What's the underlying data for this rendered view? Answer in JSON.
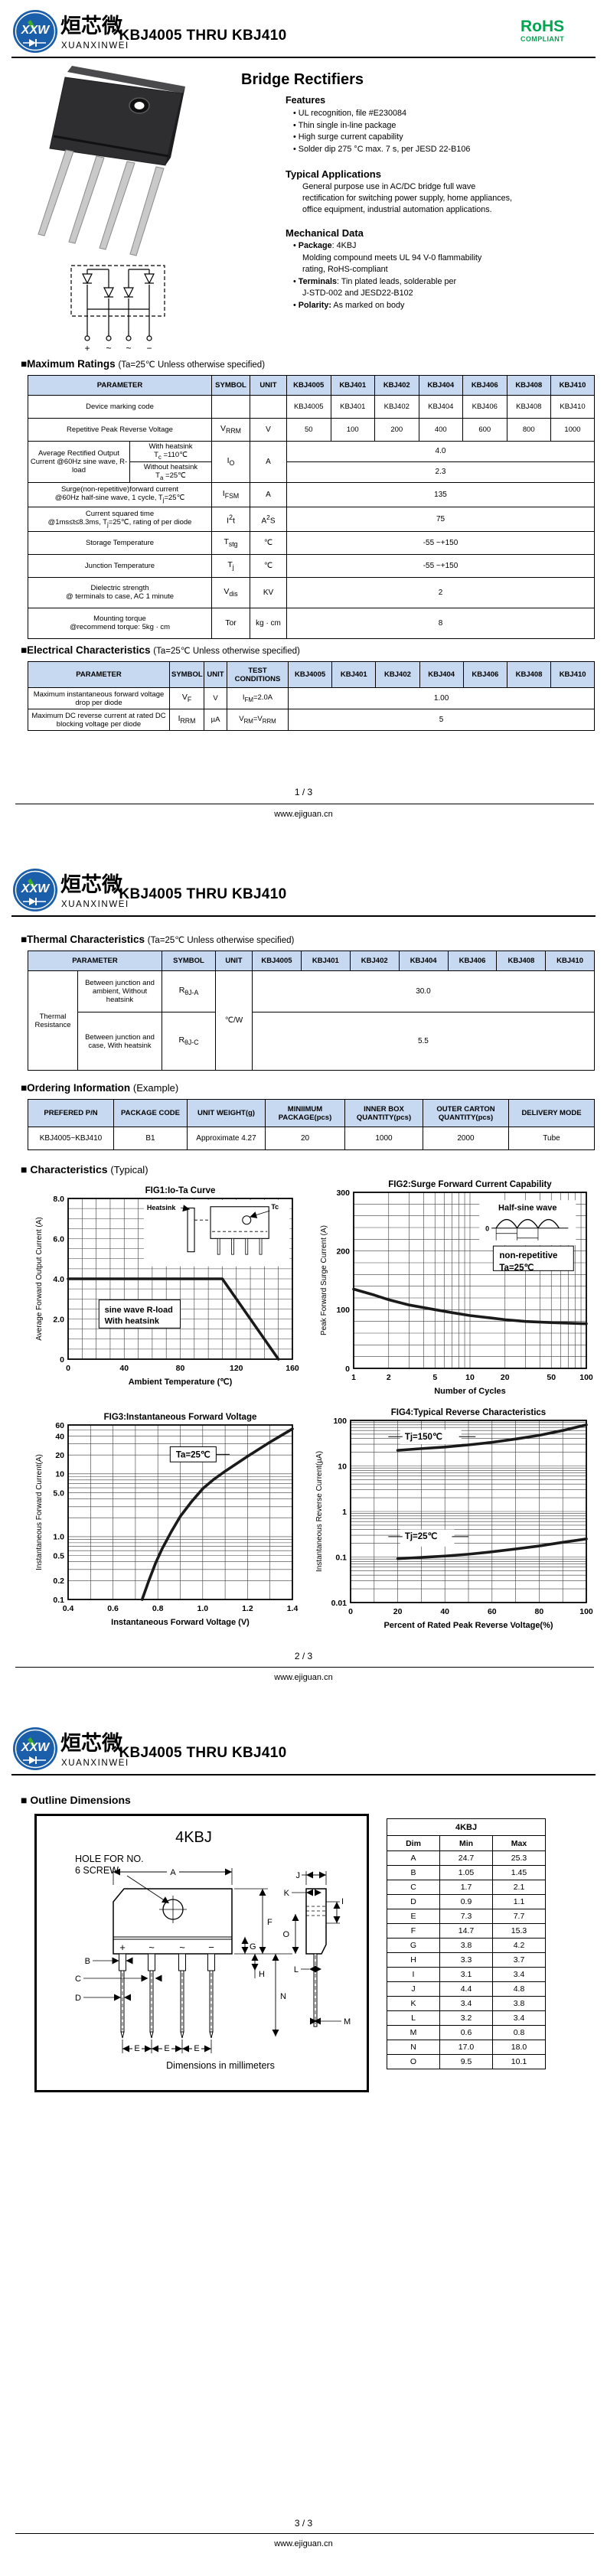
{
  "header": {
    "title": "KBJ4005 THRU KBJ410",
    "rohs": "RoHS",
    "rohs_sub": "COMPLIANT",
    "logo_abbr": "XXW",
    "logo_cn": "烜芯微",
    "logo_en": "XUANXINWEI"
  },
  "footer": {
    "url": "www.ejiguan.cn",
    "pages": [
      "1 / 3",
      "2 / 3",
      "3 / 3"
    ]
  },
  "devices": [
    "KBJ4005",
    "KBJ401",
    "KBJ402",
    "KBJ404",
    "KBJ406",
    "KBJ408",
    "KBJ410"
  ],
  "page1": {
    "product_title": "Bridge Rectifiers",
    "features_title": "Features",
    "features": [
      "UL recognition, file #E230084",
      "Thin single in-line package",
      "High surge current capability",
      "Solder dip 275 °C max. 7 s, per JESD 22-B106"
    ],
    "apps_title": "Typical  Applications",
    "apps_text": "General purpose use in AC/DC bridge full wave rectification for switching power supply, home appliances, office equipment, industrial automation applications.",
    "mech_title": "Mechanical Data",
    "mech": [
      {
        "b": "Package",
        "t": ": 4KBJ",
        "cont": [
          "Molding compound meets UL 94 V-0 flammability",
          "rating, RoHS-compliant"
        ]
      },
      {
        "b": "Terminals",
        "t": ": Tin plated leads, solderable per",
        "cont": [
          "J-STD-002 and JESD22-B102"
        ]
      },
      {
        "b": "Polarity:",
        "t": " As marked on body",
        "cont": []
      }
    ],
    "circuit_terminals": [
      "+",
      "~",
      "~",
      "−"
    ],
    "max_title": "■Maximum Ratings",
    "max_cond": "(Ta=25℃ Unless otherwise specified)",
    "max_table": {
      "headers": [
        "PARAMETER",
        "SYMBOL",
        "UNIT"
      ],
      "rows": [
        {
          "param": "Device marking code",
          "sym": "",
          "unit": "",
          "vals": [
            "KBJ4005",
            "KBJ401",
            "KBJ402",
            "KBJ404",
            "KBJ406",
            "KBJ408",
            "KBJ410"
          ]
        },
        {
          "param": "Repetitive Peak Reverse Voltage",
          "sym": "V_{RRM}",
          "unit": "V",
          "vals": [
            "50",
            "100",
            "200",
            "400",
            "600",
            "800",
            "1000"
          ]
        },
        {
          "param": "Average Rectified Output Current @60Hz sine wave, R-load",
          "sym": "I_{O}",
          "unit": "A",
          "sub": [
            {
              "cond": "With heatsink\nT_{c} =110℃",
              "val": "4.0"
            },
            {
              "cond": "Without heatsink\nT_{a} =25℃",
              "val": "2.3"
            }
          ]
        },
        {
          "param": "Surge(non-repetitive)forward current\n@60Hz half-sine wave, 1 cycle, T_{j}=25℃",
          "sym": "I_{FSM}",
          "unit": "A",
          "val": "135"
        },
        {
          "param": "Current squared time\n@1ms≤t≤8.3ms, T_{j}=25℃, rating of per diode",
          "sym": "I^{2}t",
          "unit": "A^{2}S",
          "val": "75"
        },
        {
          "param": "Storage Temperature",
          "sym": "T_{stg}",
          "unit": "℃",
          "val": "-55 ~+150"
        },
        {
          "param": "Junction Temperature",
          "sym": "T_{j}",
          "unit": "℃",
          "val": "-55 ~+150"
        },
        {
          "param": "Dielectric strength\n@ terminals to case, AC 1 minute",
          "sym": "V_{dis}",
          "unit": "KV",
          "val": "2"
        },
        {
          "param": "Mounting torque\n@recommend torque: 5kg · cm",
          "sym": "Tor",
          "unit": "kg · cm",
          "val": "8"
        }
      ]
    },
    "elec_title": "■Electrical Characteristics",
    "elec_cond": "(Ta=25℃ Unless otherwise specified)",
    "elec_table": {
      "headers": [
        "PARAMETER",
        "SYMBOL",
        "UNIT",
        "TEST\nCONDITIONS"
      ],
      "rows": [
        {
          "param": "Maximum instantaneous forward voltage drop per diode",
          "sym": "V_{F}",
          "unit": "V",
          "cond": "I_{FM}=2.0A",
          "val": "1.00"
        },
        {
          "param": "Maximum DC reverse current at rated DC blocking voltage per diode",
          "sym": "I_{RRM}",
          "unit": "µA",
          "cond": "V_{RM}=V_{RRM}",
          "val": "5"
        }
      ]
    }
  },
  "page2": {
    "thermal_title": "■Thermal Characteristics",
    "thermal_cond": "(Ta=25℃ Unless otherwise specified)",
    "thermal_table": {
      "group": "Thermal Resistance",
      "unit": "℃/W",
      "rows": [
        {
          "param": "Between junction and ambient, Without heatsink",
          "sym": "R_{θJ-A}",
          "val": "30.0"
        },
        {
          "param": "Between junction and case, With heatsink",
          "sym": "R_{θJ-C}",
          "val": "5.5"
        }
      ]
    },
    "ordering_title": "■Ordering Information",
    "ordering_suffix": "(Example)",
    "ordering_table": {
      "headers": [
        "PREFERED P/N",
        "PACKAGE CODE",
        "UNIT WEIGHT(g)",
        "MINIIMUM\nPACKAGE(pcs)",
        "INNER BOX\nQUANTITY(pcs)",
        "OUTER CARTON\nQUANTITY(pcs)",
        "DELIVERY MODE"
      ],
      "row": [
        "KBJ4005~KBJ410",
        "B1",
        "Approximate 4.27",
        "20",
        "1000",
        "2000",
        "Tube"
      ]
    },
    "char_title": "■ Characteristics",
    "char_suffix": "(Typical)"
  },
  "chart_data": [
    {
      "id": "fig1",
      "type": "line",
      "title": "FIG1:Io-Ta Curve",
      "xlabel": "Ambient Temperature (℃)",
      "ylabel": "Average Forward Output Current (A)",
      "xlim": [
        0,
        160
      ],
      "ylim": [
        0,
        8
      ],
      "xminor": 10,
      "yminor": 0.5,
      "xticks": [
        [
          0,
          "0"
        ],
        [
          40,
          "40"
        ],
        [
          80,
          "80"
        ],
        [
          120,
          "120"
        ],
        [
          160,
          "160"
        ]
      ],
      "yticks": [
        [
          8,
          "8.0"
        ],
        [
          6,
          "6.0"
        ],
        [
          4,
          "4.0"
        ],
        [
          2,
          "2.0"
        ],
        [
          0,
          "0"
        ]
      ],
      "grid": true,
      "legend": "none",
      "series": [
        {
          "name": "Io with heatsink",
          "values": [
            [
              0,
              4
            ],
            [
              110,
              4
            ],
            [
              150,
              0
            ]
          ]
        }
      ],
      "annotations": [
        "sine wave R-load",
        "With heatsink"
      ],
      "inset_labels": [
        "Heatsink",
        "Tc"
      ]
    },
    {
      "id": "fig2",
      "type": "line",
      "title": "FIG2:Surge Forward Current Capability",
      "xlabel": "Number of Cycles",
      "ylabel": "Peak Forward Surge Current (A)",
      "xscale": "log",
      "xlim": [
        1,
        100
      ],
      "ylim": [
        0,
        300
      ],
      "yminor": 20,
      "xticks": [
        [
          1,
          "1"
        ],
        [
          2,
          "2"
        ],
        [
          5,
          "5"
        ],
        [
          10,
          "10"
        ],
        [
          20,
          "20"
        ],
        [
          50,
          "50"
        ],
        [
          100,
          "100"
        ]
      ],
      "yticks": [
        [
          300,
          "300"
        ],
        [
          200,
          "200"
        ],
        [
          100,
          "100"
        ],
        [
          0,
          "0"
        ]
      ],
      "grid": true,
      "legend": "none",
      "series": [
        {
          "name": "IFSM",
          "values": [
            [
              1,
              135
            ],
            [
              1.5,
              125
            ],
            [
              2,
              117
            ],
            [
              3,
              108
            ],
            [
              5,
              100
            ],
            [
              7,
              95
            ],
            [
              10,
              90
            ],
            [
              15,
              86
            ],
            [
              20,
              83
            ],
            [
              30,
              80
            ],
            [
              50,
              78
            ],
            [
              70,
              77
            ],
            [
              100,
              76
            ]
          ]
        }
      ],
      "annotations": [
        "non-repetitive",
        "Ta=25℃"
      ],
      "inset_labels": [
        "Half-sine wave",
        "0"
      ]
    },
    {
      "id": "fig3",
      "type": "line",
      "title": "FIG3:Instantaneous Forward Voltage",
      "xlabel": "Instantaneous Forward Voltage (V)",
      "ylabel": "Instantaneous Forward Current(A)",
      "yscale": "log",
      "xlim": [
        0.4,
        1.4
      ],
      "ylim": [
        0.1,
        60
      ],
      "xminor": 0.1,
      "xticks": [
        [
          0.4,
          "0.4"
        ],
        [
          0.6,
          "0.6"
        ],
        [
          0.8,
          "0.8"
        ],
        [
          1.0,
          "1.0"
        ],
        [
          1.2,
          "1.2"
        ],
        [
          1.4,
          "1.4"
        ]
      ],
      "yticks": [
        [
          60,
          "60"
        ],
        [
          40,
          "40"
        ],
        [
          20,
          "20"
        ],
        [
          10,
          "10"
        ],
        [
          5,
          "5.0"
        ],
        [
          1,
          "1.0"
        ],
        [
          0.5,
          "0.5"
        ],
        [
          0.2,
          "0.2"
        ],
        [
          0.1,
          "0.1"
        ]
      ],
      "grid": true,
      "legend": "none",
      "series": [
        {
          "name": "IF @ Ta=25℃",
          "values": [
            [
              0.73,
              0.1
            ],
            [
              0.76,
              0.2
            ],
            [
              0.79,
              0.38
            ],
            [
              0.82,
              0.65
            ],
            [
              0.86,
              1.2
            ],
            [
              0.9,
              2.1
            ],
            [
              0.95,
              3.6
            ],
            [
              1.0,
              5.8
            ],
            [
              1.05,
              8.2
            ],
            [
              1.1,
              11
            ],
            [
              1.2,
              19
            ],
            [
              1.3,
              32
            ],
            [
              1.4,
              52
            ]
          ]
        }
      ],
      "annotations": [
        "Ta=25℃"
      ]
    },
    {
      "id": "fig4",
      "type": "line",
      "title": "FIG4:Typical Reverse Characteristics",
      "xlabel": "Percent of Rated Peak Reverse Voltage(%)",
      "ylabel": "Instantaneous Reverse Current(µA)",
      "yscale": "log",
      "xlim": [
        0,
        100
      ],
      "ylim": [
        0.01,
        100
      ],
      "xminor": 10,
      "xticks": [
        [
          0,
          "0"
        ],
        [
          20,
          "20"
        ],
        [
          40,
          "40"
        ],
        [
          60,
          "60"
        ],
        [
          80,
          "80"
        ],
        [
          100,
          "100"
        ]
      ],
      "yticks": [
        [
          100,
          "100"
        ],
        [
          10,
          "10"
        ],
        [
          1,
          "1"
        ],
        [
          0.1,
          "0.1"
        ],
        [
          0.01,
          "0.01"
        ]
      ],
      "grid": true,
      "legend": "none",
      "series": [
        {
          "name": "Tj=150℃",
          "values": [
            [
              20,
              22
            ],
            [
              30,
              24
            ],
            [
              40,
              26
            ],
            [
              50,
              29
            ],
            [
              60,
              33
            ],
            [
              70,
              39
            ],
            [
              80,
              47
            ],
            [
              90,
              60
            ],
            [
              100,
              80
            ]
          ]
        },
        {
          "name": "Tj=25℃",
          "values": [
            [
              20,
              0.092
            ],
            [
              30,
              0.098
            ],
            [
              40,
              0.105
            ],
            [
              50,
              0.115
            ],
            [
              60,
              0.13
            ],
            [
              70,
              0.15
            ],
            [
              80,
              0.175
            ],
            [
              90,
              0.21
            ],
            [
              100,
              0.25
            ]
          ]
        }
      ],
      "annotations": [
        "Tj=150℃",
        "Tj=25℃"
      ]
    }
  ],
  "page3": {
    "outline_title": "■ Outline Dimensions",
    "drawing": {
      "title": "4KBJ",
      "hole_note_1": "HOLE FOR NO.",
      "hole_note_2": "6 SCREW",
      "caption": "Dimensions in millimeters",
      "pin_marks": [
        "+",
        "~",
        "~",
        "−"
      ],
      "dims_front": [
        "A",
        "B",
        "C",
        "D",
        "E",
        "F",
        "G",
        "H",
        "N"
      ],
      "dims_side": [
        "J",
        "K",
        "I",
        "O",
        "L",
        "M"
      ]
    },
    "dim_table": {
      "title": "4KBJ",
      "headers": [
        "Dim",
        "Min",
        "Max"
      ],
      "rows": [
        [
          "A",
          "24.7",
          "25.3"
        ],
        [
          "B",
          "1.05",
          "1.45"
        ],
        [
          "C",
          "1.7",
          "2.1"
        ],
        [
          "D",
          "0.9",
          "1.1"
        ],
        [
          "E",
          "7.3",
          "7.7"
        ],
        [
          "F",
          "14.7",
          "15.3"
        ],
        [
          "G",
          "3.8",
          "4.2"
        ],
        [
          "H",
          "3.3",
          "3.7"
        ],
        [
          "I",
          "3.1",
          "3.4"
        ],
        [
          "J",
          "4.4",
          "4.8"
        ],
        [
          "K",
          "3.4",
          "3.8"
        ],
        [
          "L",
          "3.2",
          "3.4"
        ],
        [
          "M",
          "0.6",
          "0.8"
        ],
        [
          "N",
          "17.0",
          "18.0"
        ],
        [
          "O",
          "9.5",
          "10.1"
        ]
      ]
    }
  }
}
